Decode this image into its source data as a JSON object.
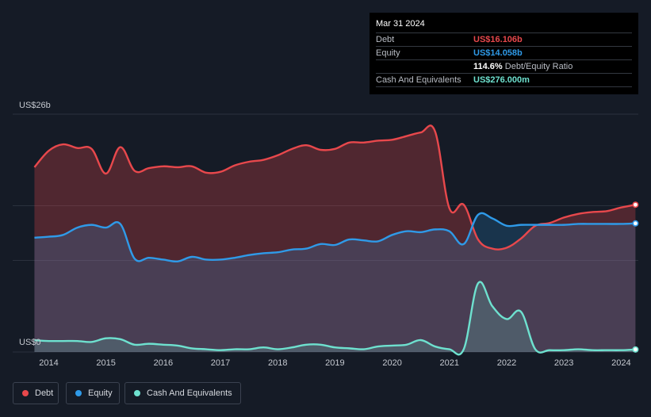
{
  "tooltip": {
    "date": "Mar 31 2024",
    "rows": [
      {
        "label": "Debt",
        "value": "US$16.106b",
        "color": "#e8484c"
      },
      {
        "label": "Equity",
        "value": "US$14.058b",
        "color": "#2f9ae8"
      },
      {
        "label": "",
        "value": "114.6%",
        "suffix": "Debt/Equity Ratio",
        "color": "#ffffff"
      },
      {
        "label": "Cash And Equivalents",
        "value": "US$276.000m",
        "color": "#6ee1cf"
      }
    ]
  },
  "legend": [
    {
      "label": "Debt",
      "color": "#e8484c"
    },
    {
      "label": "Equity",
      "color": "#2f9ae8"
    },
    {
      "label": "Cash And Equivalents",
      "color": "#6ee1cf"
    }
  ],
  "chart_data": {
    "type": "area",
    "ylabel_top": "US$26b",
    "ylabel_bottom": "US$0",
    "ylim": [
      0,
      26
    ],
    "unit": "US$ billions",
    "x_ticks": [
      "2014",
      "2015",
      "2016",
      "2017",
      "2018",
      "2019",
      "2020",
      "2021",
      "2022",
      "2023",
      "2024"
    ],
    "grid": true,
    "legend_position": "bottom-left",
    "series": [
      {
        "name": "Debt",
        "color": "#e8484c",
        "points": [
          [
            2013.75,
            20.2
          ],
          [
            2014.0,
            22.0
          ],
          [
            2014.25,
            22.7
          ],
          [
            2014.5,
            22.3
          ],
          [
            2014.75,
            22.2
          ],
          [
            2015.0,
            19.5
          ],
          [
            2015.25,
            22.4
          ],
          [
            2015.5,
            19.8
          ],
          [
            2015.75,
            20.1
          ],
          [
            2016.0,
            20.3
          ],
          [
            2016.25,
            20.2
          ],
          [
            2016.5,
            20.3
          ],
          [
            2016.75,
            19.6
          ],
          [
            2017.0,
            19.7
          ],
          [
            2017.25,
            20.4
          ],
          [
            2017.5,
            20.8
          ],
          [
            2017.75,
            21.0
          ],
          [
            2018.0,
            21.5
          ],
          [
            2018.25,
            22.2
          ],
          [
            2018.5,
            22.6
          ],
          [
            2018.75,
            22.1
          ],
          [
            2019.0,
            22.2
          ],
          [
            2019.25,
            22.9
          ],
          [
            2019.5,
            22.9
          ],
          [
            2019.75,
            23.1
          ],
          [
            2020.0,
            23.2
          ],
          [
            2020.25,
            23.6
          ],
          [
            2020.5,
            24.0
          ],
          [
            2020.75,
            24.1
          ],
          [
            2021.0,
            15.7
          ],
          [
            2021.25,
            16.1
          ],
          [
            2021.5,
            12.3
          ],
          [
            2021.75,
            11.3
          ],
          [
            2022.0,
            11.4
          ],
          [
            2022.25,
            12.4
          ],
          [
            2022.5,
            13.8
          ],
          [
            2022.75,
            14.1
          ],
          [
            2023.0,
            14.7
          ],
          [
            2023.25,
            15.1
          ],
          [
            2023.5,
            15.3
          ],
          [
            2023.75,
            15.4
          ],
          [
            2024.0,
            15.8
          ],
          [
            2024.25,
            16.1
          ]
        ]
      },
      {
        "name": "Equity",
        "color": "#2f9ae8",
        "points": [
          [
            2013.75,
            12.5
          ],
          [
            2014.0,
            12.6
          ],
          [
            2014.25,
            12.8
          ],
          [
            2014.5,
            13.6
          ],
          [
            2014.75,
            13.9
          ],
          [
            2015.0,
            13.6
          ],
          [
            2015.25,
            14.0
          ],
          [
            2015.5,
            10.2
          ],
          [
            2015.75,
            10.3
          ],
          [
            2016.0,
            10.1
          ],
          [
            2016.25,
            9.9
          ],
          [
            2016.5,
            10.4
          ],
          [
            2016.75,
            10.1
          ],
          [
            2017.0,
            10.1
          ],
          [
            2017.25,
            10.3
          ],
          [
            2017.5,
            10.6
          ],
          [
            2017.75,
            10.8
          ],
          [
            2018.0,
            10.9
          ],
          [
            2018.25,
            11.2
          ],
          [
            2018.5,
            11.3
          ],
          [
            2018.75,
            11.8
          ],
          [
            2019.0,
            11.7
          ],
          [
            2019.25,
            12.3
          ],
          [
            2019.5,
            12.2
          ],
          [
            2019.75,
            12.1
          ],
          [
            2020.0,
            12.8
          ],
          [
            2020.25,
            13.2
          ],
          [
            2020.5,
            13.1
          ],
          [
            2020.75,
            13.4
          ],
          [
            2021.0,
            13.2
          ],
          [
            2021.25,
            11.8
          ],
          [
            2021.5,
            15.0
          ],
          [
            2021.75,
            14.6
          ],
          [
            2022.0,
            13.8
          ],
          [
            2022.25,
            13.9
          ],
          [
            2022.5,
            13.9
          ],
          [
            2022.75,
            13.9
          ],
          [
            2023.0,
            13.9
          ],
          [
            2023.25,
            14.0
          ],
          [
            2023.5,
            14.0
          ],
          [
            2023.75,
            14.0
          ],
          [
            2024.0,
            14.0
          ],
          [
            2024.25,
            14.06
          ]
        ]
      },
      {
        "name": "Cash And Equivalents",
        "color": "#6ee1cf",
        "points": [
          [
            2013.75,
            1.3
          ],
          [
            2014.0,
            1.2
          ],
          [
            2014.25,
            1.2
          ],
          [
            2014.5,
            1.2
          ],
          [
            2014.75,
            1.1
          ],
          [
            2015.0,
            1.5
          ],
          [
            2015.25,
            1.4
          ],
          [
            2015.5,
            0.8
          ],
          [
            2015.75,
            0.9
          ],
          [
            2016.0,
            0.8
          ],
          [
            2016.25,
            0.7
          ],
          [
            2016.5,
            0.4
          ],
          [
            2016.75,
            0.3
          ],
          [
            2017.0,
            0.2
          ],
          [
            2017.25,
            0.3
          ],
          [
            2017.5,
            0.3
          ],
          [
            2017.75,
            0.5
          ],
          [
            2018.0,
            0.3
          ],
          [
            2018.25,
            0.5
          ],
          [
            2018.5,
            0.8
          ],
          [
            2018.75,
            0.8
          ],
          [
            2019.0,
            0.5
          ],
          [
            2019.25,
            0.4
          ],
          [
            2019.5,
            0.3
          ],
          [
            2019.75,
            0.6
          ],
          [
            2020.0,
            0.7
          ],
          [
            2020.25,
            0.8
          ],
          [
            2020.5,
            1.3
          ],
          [
            2020.75,
            0.6
          ],
          [
            2021.0,
            0.3
          ],
          [
            2021.25,
            0.3
          ],
          [
            2021.5,
            7.5
          ],
          [
            2021.75,
            5.0
          ],
          [
            2022.0,
            3.6
          ],
          [
            2022.25,
            4.4
          ],
          [
            2022.5,
            0.3
          ],
          [
            2022.75,
            0.2
          ],
          [
            2023.0,
            0.2
          ],
          [
            2023.25,
            0.3
          ],
          [
            2023.5,
            0.2
          ],
          [
            2023.75,
            0.2
          ],
          [
            2024.0,
            0.2
          ],
          [
            2024.25,
            0.276
          ]
        ]
      }
    ]
  }
}
